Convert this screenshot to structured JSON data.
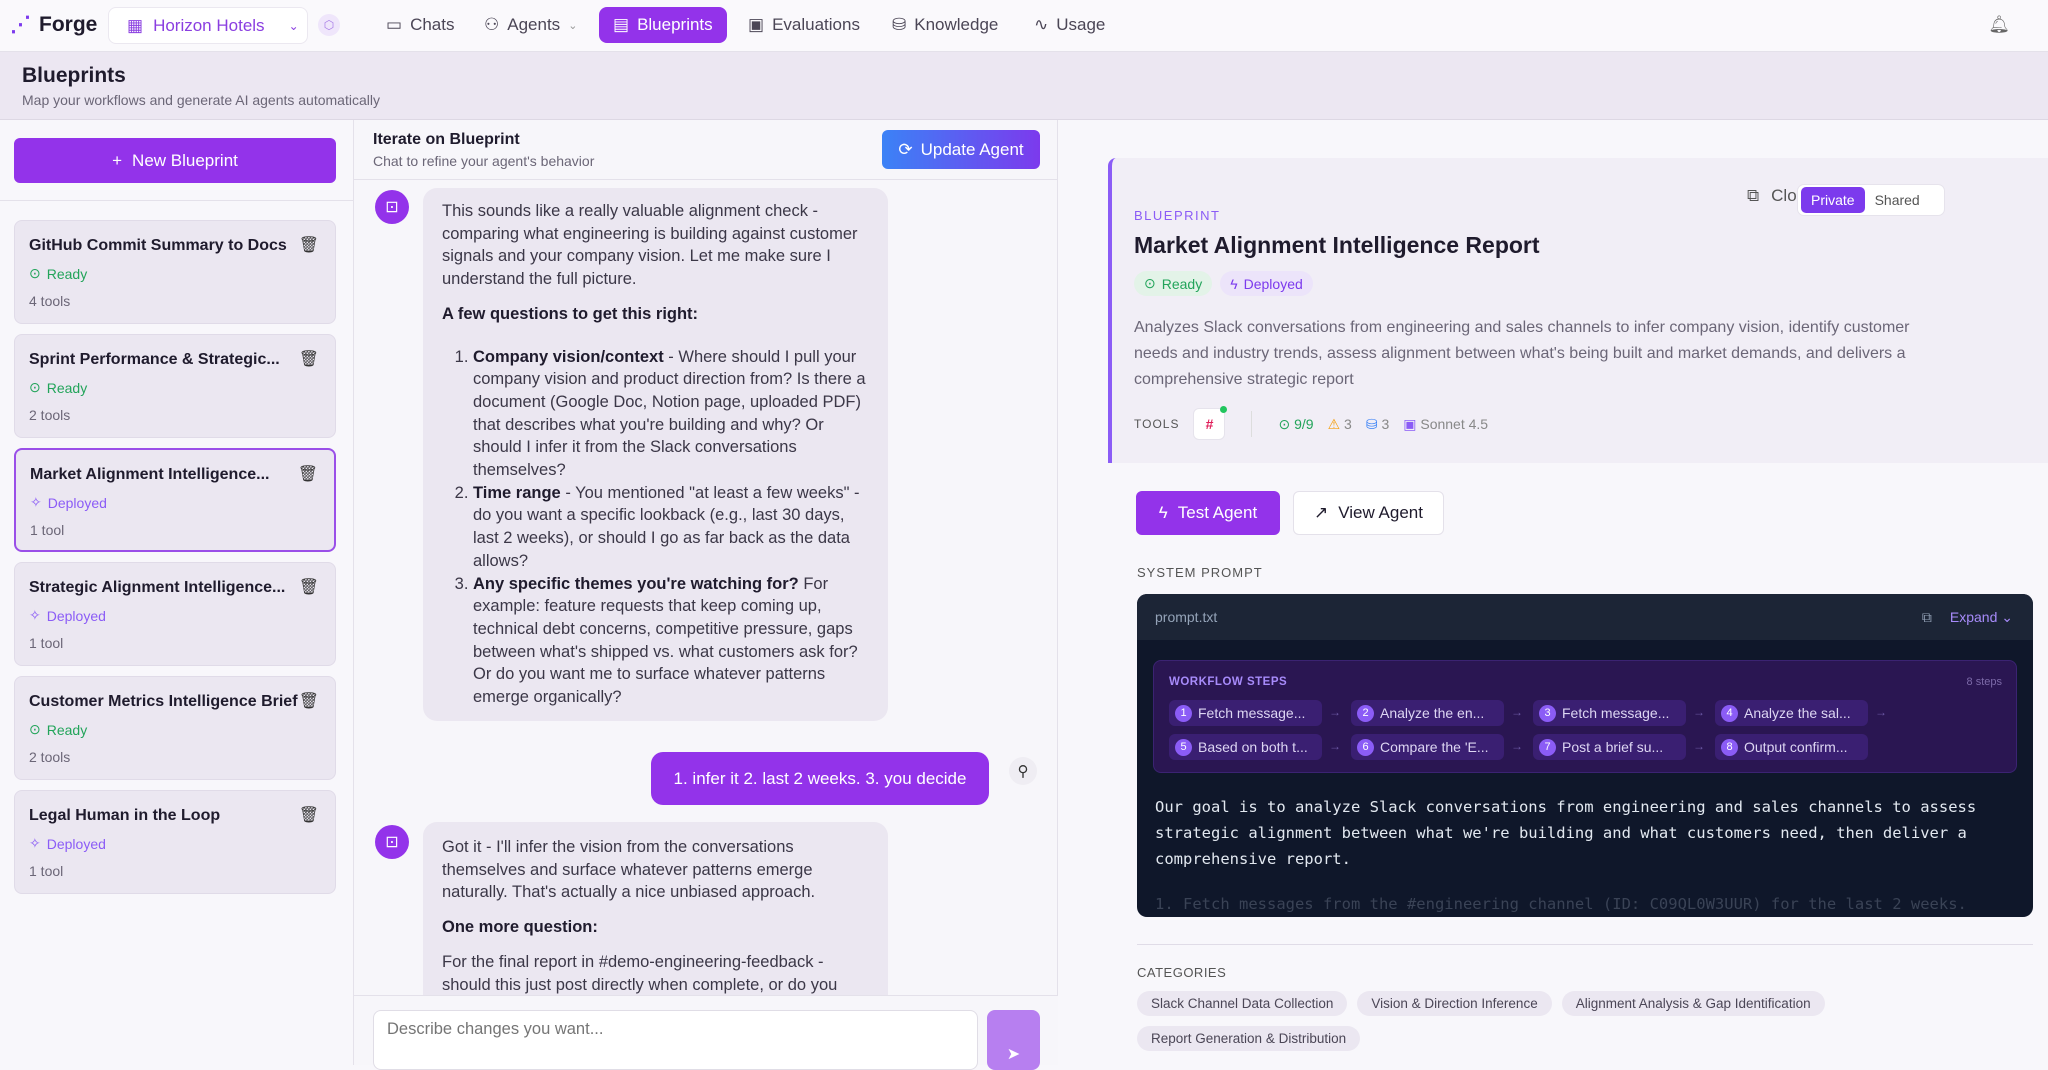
{
  "app": {
    "name": "Forge",
    "org": "Horizon Hotels"
  },
  "nav": [
    {
      "label": "Chats",
      "icon": "chat-icon"
    },
    {
      "label": "Agents",
      "icon": "users-icon"
    },
    {
      "label": "Blueprints",
      "icon": "document-icon",
      "active": true
    },
    {
      "label": "Evaluations",
      "icon": "clipboard-icon"
    },
    {
      "label": "Knowledge",
      "icon": "database-icon"
    },
    {
      "label": "Usage",
      "icon": "activity-icon"
    }
  ],
  "page": {
    "title": "Blueprints",
    "subtitle": "Map your workflows and generate AI agents automatically"
  },
  "sidebar": {
    "new_label": "New Blueprint",
    "items": [
      {
        "title": "GitHub Commit Summary to Docs",
        "status": "Ready",
        "tools": "4 tools"
      },
      {
        "title": "Sprint Performance & Strategic...",
        "status": "Ready",
        "tools": "2 tools"
      },
      {
        "title": "Market Alignment Intelligence...",
        "status": "Deployed",
        "tools": "1 tool",
        "selected": true
      },
      {
        "title": "Strategic Alignment Intelligence...",
        "status": "Deployed",
        "tools": "1 tool"
      },
      {
        "title": "Customer Metrics Intelligence Brief",
        "status": "Ready",
        "tools": "2 tools"
      },
      {
        "title": "Legal Human in the Loop",
        "status": "Deployed",
        "tools": "1 tool"
      }
    ]
  },
  "chat": {
    "title": "Iterate on Blueprint",
    "subtitle": "Chat to refine your agent's behavior",
    "update_label": "Update Agent",
    "m1": {
      "intro": "This sounds like a really valuable alignment check - comparing what engineering is building against customer signals and your company vision. Let me make sure I understand the full picture.",
      "heading": "A few questions to get this right:",
      "q": [
        {
          "b": "Company vision/context",
          "t": " - Where should I pull your company vision and product direction from? Is there a document (Google Doc, Notion page, uploaded PDF) that describes what you're building and why? Or should I infer it from the Slack conversations themselves?"
        },
        {
          "b": "Time range",
          "t": " - You mentioned \"at least a few weeks\" - do you want a specific lookback (e.g., last 30 days, last 2 weeks), or should I go as far back as the data allows?"
        },
        {
          "b": "Any specific themes you're watching for?",
          "t": " For example: feature requests that keep coming up, technical debt concerns, competitive pressure, gaps between what's shipped vs. what customers ask for? Or do you want me to surface whatever patterns emerge organically?"
        }
      ]
    },
    "user": "1.  infer it 2. last 2 weeks. 3. you decide",
    "m2": {
      "p1": "Got it - I'll infer the vision from the conversations themselves and surface whatever patterns emerge naturally. That's actually a nice unbiased approach.",
      "heading": "One more question:",
      "p2": "For the final report in #demo-engineering-feedback - should this just post directly when complete, or do you"
    },
    "placeholder": "Describe changes you want..."
  },
  "detail": {
    "label": "BLUEPRINT",
    "title": "Market Alignment Intelligence Report",
    "clone": "Clone",
    "vis": [
      "Private",
      "Shared"
    ],
    "vis_selected": "Private",
    "badges": [
      "Ready",
      "Deployed"
    ],
    "description": "Analyzes Slack conversations from engineering and sales channels to infer company vision, identify customer needs and industry trends, assess alignment between what's being built and market demands, and delivers a comprehensive strategic report",
    "tools_label": "TOOLS",
    "tool_icon": "slack-icon",
    "stats": {
      "checks": "9/9",
      "warnings": "3",
      "data": "3",
      "model": "Sonnet 4.5"
    },
    "test": "Test Agent",
    "view": "View Agent",
    "sp_label": "SYSTEM PROMPT",
    "file": "prompt.txt",
    "expand": "Expand",
    "wf_label": "WORKFLOW STEPS",
    "wf_count": "8 steps",
    "steps": [
      "Fetch message...",
      "Analyze the en...",
      "Fetch message...",
      "Analyze the sal...",
      "Based on both t...",
      "Compare the 'E...",
      "Post a brief su...",
      "Output confirm..."
    ],
    "prompt_text": "Our goal is to analyze Slack conversations from engineering and sales channels to assess strategic alignment between what we're building and what customers need, then deliver a comprehensive report.",
    "prompt_fade": "1. Fetch messages from the #engineering channel (ID: C09QL0W3UUR) for the last 2 weeks.",
    "cat_label": "CATEGORIES",
    "categories": [
      "Slack Channel Data Collection",
      "Vision & Direction Inference",
      "Alignment Analysis & Gap Identification",
      "Report Generation & Distribution"
    ]
  },
  "colors": {
    "accent": "#9333ea",
    "ready": "#22a45a",
    "deployed": "#8b5cf6",
    "prompt_bg": "#0f172a"
  }
}
